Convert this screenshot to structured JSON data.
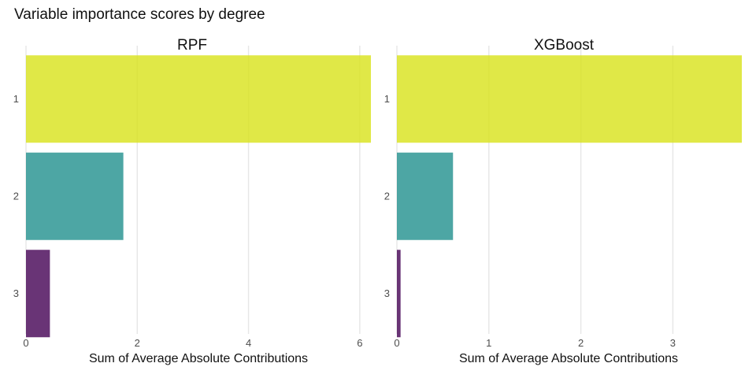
{
  "chart_data": {
    "type": "bar",
    "orientation": "horizontal",
    "title": "Variable importance scores by degree",
    "categories": [
      "1",
      "2",
      "3"
    ],
    "colors": [
      "#d8e219",
      "#21908d",
      "#440154"
    ],
    "bar_opacity": 0.8,
    "grid": "vertical",
    "legend": "none",
    "facets": [
      {
        "name": "RPF",
        "values": [
          6.2,
          1.75,
          0.43
        ],
        "xlim": [
          0,
          6.2
        ],
        "xticks": [
          "0",
          "2",
          "4",
          "6"
        ],
        "xlabel": "Sum of Average Absolute Contributions"
      },
      {
        "name": "XGBoost",
        "values": [
          3.75,
          0.61,
          0.04
        ],
        "xlim": [
          0,
          3.75
        ],
        "xticks": [
          "0",
          "1",
          "2",
          "3"
        ],
        "xlabel": "Sum of Average Absolute Contributions"
      }
    ]
  }
}
